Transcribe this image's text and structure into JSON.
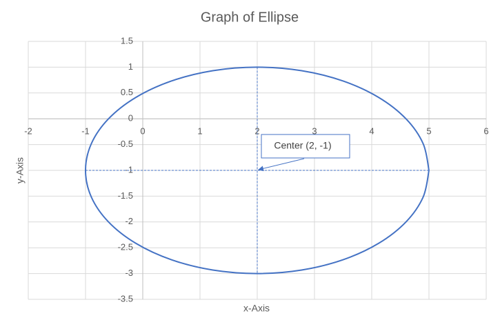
{
  "chart_data": {
    "type": "scatter",
    "title": "Graph of Ellipse",
    "x_label": "x-Axis",
    "y_label": "y-Axis",
    "xlim": [
      -2,
      6
    ],
    "xticks": [
      -2,
      -1,
      0,
      1,
      2,
      3,
      4,
      5,
      6
    ],
    "ylim": [
      -3.5,
      1.5
    ],
    "yticks": [
      -3.5,
      -3,
      -2.5,
      -2,
      -1.5,
      -1,
      -0.5,
      0,
      0.5,
      1,
      1.5
    ],
    "grid": true,
    "series": [
      {
        "color": "#4472c4",
        "line": "solid",
        "smooth": true,
        "x": [
          5,
          4.898,
          4.598,
          4.121,
          3.5,
          2.776,
          2,
          1.224,
          0.5,
          -0.121,
          -0.598,
          -0.898,
          -1,
          -0.898,
          -0.598,
          -0.121,
          0.5,
          1.224,
          2,
          2.776,
          3.5,
          4.121,
          4.598,
          4.898,
          5
        ],
        "values": [
          -1,
          -0.482,
          0,
          0.414,
          0.732,
          0.932,
          1,
          0.932,
          0.732,
          0.414,
          0,
          -0.482,
          -1,
          -1.518,
          -2,
          -2.414,
          -2.732,
          -2.932,
          -3,
          -2.932,
          -2.732,
          -2.414,
          -2,
          -1.518,
          -1
        ]
      },
      {
        "color": "#4472c4",
        "line": "dashed",
        "x": [
          -1,
          5
        ],
        "values": [
          -1,
          -1
        ]
      },
      {
        "color": "#4472c4",
        "line": "dashed",
        "x": [
          2,
          2
        ],
        "values": [
          1,
          -3
        ]
      }
    ],
    "annotation": {
      "text": "Center (2, -1)",
      "x": 2,
      "y": -1
    }
  }
}
